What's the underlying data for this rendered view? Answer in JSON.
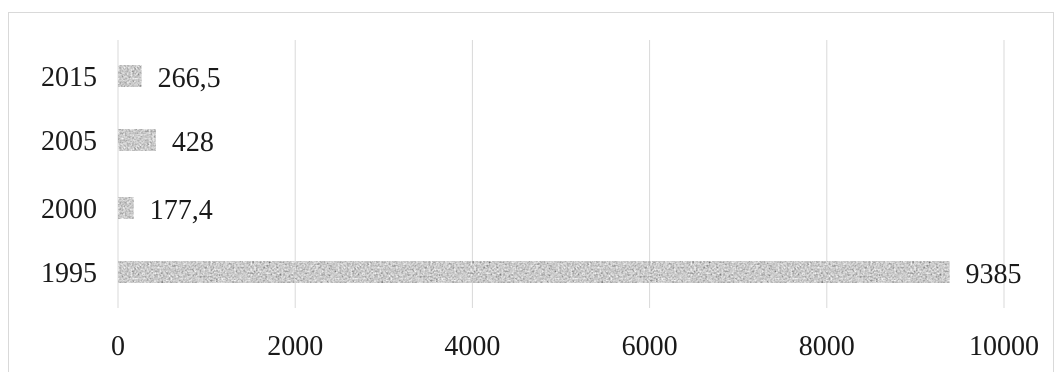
{
  "chart_data": {
    "type": "bar",
    "orientation": "horizontal",
    "categories": [
      "1995",
      "2000",
      "2005",
      "2015"
    ],
    "values": [
      9385,
      177.4,
      428,
      266.5
    ],
    "data_labels": [
      "9385",
      "177,4",
      "428",
      "266,5"
    ],
    "xlim": [
      0,
      10000
    ],
    "x_ticks": [
      0,
      2000,
      4000,
      6000,
      8000,
      10000
    ],
    "x_tick_labels": [
      "0",
      "2000",
      "4000",
      "6000",
      "8000",
      "10000"
    ],
    "grid": "vertical",
    "legend": "none",
    "title": "",
    "xlabel": "",
    "ylabel": "",
    "bar_pattern": "noise-texture-gray"
  }
}
